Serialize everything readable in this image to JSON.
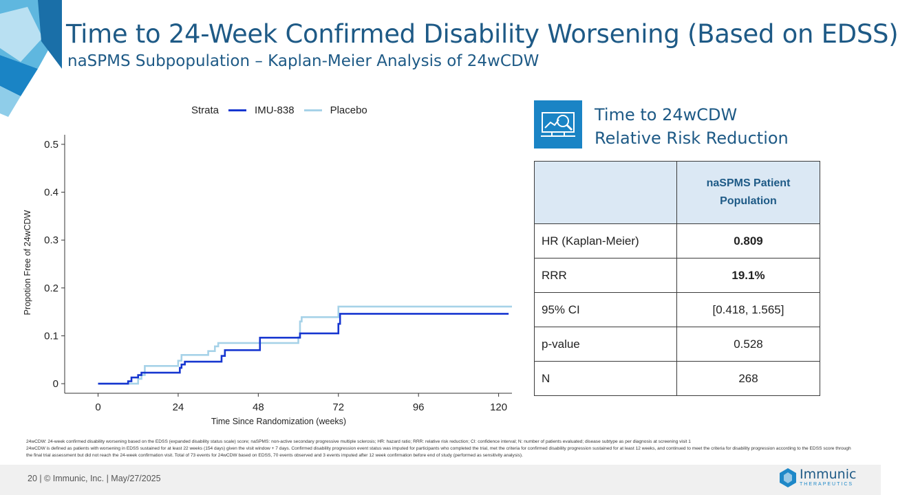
{
  "header": {
    "title": "Time to 24-Week Confirmed Disability Worsening (Based on EDSS)",
    "subtitle": "naSPMS Subpopulation – Kaplan-Meier Analysis of 24wCDW"
  },
  "legend": {
    "label": "Strata"
  },
  "chart_data": {
    "type": "line",
    "subtype": "kaplan-meier step",
    "xlabel": "Time Since Randomization (weeks)",
    "ylabel": "Propotion Free of 24wCDW",
    "xlim": [
      -10,
      124
    ],
    "ylim": [
      -0.02,
      0.52
    ],
    "xticks": [
      0,
      24,
      48,
      72,
      96,
      120
    ],
    "xtick_labels": [
      "0",
      "24",
      "48",
      "72",
      "96",
      "120"
    ],
    "yticks": [
      0,
      0.1,
      0.2,
      0.3,
      0.4,
      0.5
    ],
    "ytick_labels": [
      "0",
      "0.1",
      "0.2",
      "0.3",
      "0.4",
      "0.5"
    ],
    "grid": false,
    "legend_position": "top",
    "series": [
      {
        "name": "IMU-838",
        "color": "#1636d0",
        "x": [
          0,
          8,
          9,
          10,
          12,
          13,
          24,
          24.5,
          25,
          26,
          36,
          37,
          38,
          48,
          48.5,
          60,
          60.5,
          71.5,
          72,
          72.5,
          123
        ],
        "y": [
          0,
          0,
          0.005,
          0.013,
          0.018,
          0.023,
          0.023,
          0.033,
          0.04,
          0.046,
          0.046,
          0.058,
          0.07,
          0.07,
          0.096,
          0.096,
          0.105,
          0.105,
          0.125,
          0.146,
          0.146
        ]
      },
      {
        "name": "Placebo",
        "color": "#a6d2e8",
        "x": [
          0,
          11,
          12,
          13,
          14,
          23,
          24,
          25,
          32,
          33,
          35,
          36,
          48,
          60,
          60.5,
          61,
          71.5,
          72,
          124
        ],
        "y": [
          0,
          0,
          0.01,
          0.018,
          0.037,
          0.037,
          0.048,
          0.06,
          0.06,
          0.068,
          0.078,
          0.085,
          0.085,
          0.097,
          0.13,
          0.139,
          0.139,
          0.161,
          0.161
        ]
      }
    ]
  },
  "kpi": {
    "icon": "magnifier-chart-icon",
    "line1": "Time to 24wCDW",
    "line2": "Relative Risk Reduction"
  },
  "table": {
    "header_line1": "naSPMS Patient",
    "header_line2": "Population",
    "rows": [
      {
        "label": "HR (Kaplan-Meier)",
        "value": "0.809"
      },
      {
        "label": "RRR",
        "value": "19.1%"
      },
      {
        "label": "95% CI",
        "value": "[0.418, 1.565]"
      },
      {
        "label": "p-value",
        "value": "0.528"
      },
      {
        "label": "N",
        "value": "268"
      }
    ]
  },
  "footnotes": [
    "24wCDW: 24-week confirmed disability worsening based on the EDSS (expanded disability status scale) score; naSPMS: non-active secondary progressive multiple sclerosis; HR: hazard ratio; RRR: relative risk reduction; CI: confidence interval; N: number of patients evaluated; disease subtype as per diagnosis at screening visit 1",
    "24wCDW is defined as patients with worsening in EDSS sustained for at least 22 weeks (154 days) given the visit window + 7 days. Confirmed disability progression event status was imputed for participants who completed the trial, met the criteria for confirmed disability progression sustained for at least 12 weeks, and continued to meet the criteria for disability progression according to the EDSS score through the final trial assessment but did not reach the 24-week confirmation visit. Total of 73 events for 24wCDW based on EDSS, 70 events observed and 3 events imputed after 12 week confirmation before end of study (performed as sensitivity analysis)."
  ],
  "footer": {
    "text": "20   |  © Immunic, Inc.  | May/27/2025",
    "logo_name": "Immunic",
    "logo_sub": "THERAPEUTICS"
  },
  "colors": {
    "brand": "#1e5a86",
    "accent": "#1a84c5",
    "table_header_bg": "#dbe8f4"
  }
}
